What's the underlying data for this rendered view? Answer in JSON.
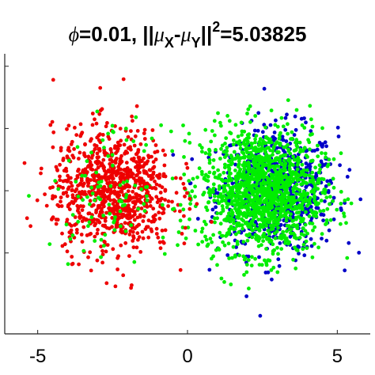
{
  "chart_data": {
    "type": "scatter",
    "title": {
      "phi_symbol": "ϕ",
      "phi_text": "=0.01, ||",
      "mu1": "μ",
      "sub1": "X",
      "dash": "-",
      "mu2": "μ",
      "sub2": "Y",
      "bars": "||",
      "sup": "2",
      "value_text": "=5.03825"
    },
    "xlabel": "",
    "ylabel": "",
    "xlim": [
      -6.1,
      6.1
    ],
    "ylim": [
      -4.6,
      4.4
    ],
    "x_ticks": [
      -5,
      0,
      5
    ],
    "x_tick_labels": [
      "-5",
      "0",
      "5"
    ],
    "y_ticks": [
      -2,
      0,
      2,
      4
    ],
    "grid": false,
    "series": [
      {
        "color": "#0000c8",
        "center": [
          3.0,
          0.0
        ],
        "spread": [
          1.0,
          1.0
        ],
        "count": 700
      },
      {
        "color": "#00ee00",
        "center": [
          2.5,
          0.0
        ],
        "spread": [
          1.0,
          1.0
        ],
        "count": 1400
      },
      {
        "color": "#ee0000",
        "center": [
          -2.5,
          0.0
        ],
        "spread": [
          1.0,
          1.0
        ],
        "count": 900
      },
      {
        "color": "#00ee00",
        "center": [
          -2.5,
          0.0
        ],
        "spread": [
          1.0,
          1.0
        ],
        "count": 100
      }
    ]
  }
}
